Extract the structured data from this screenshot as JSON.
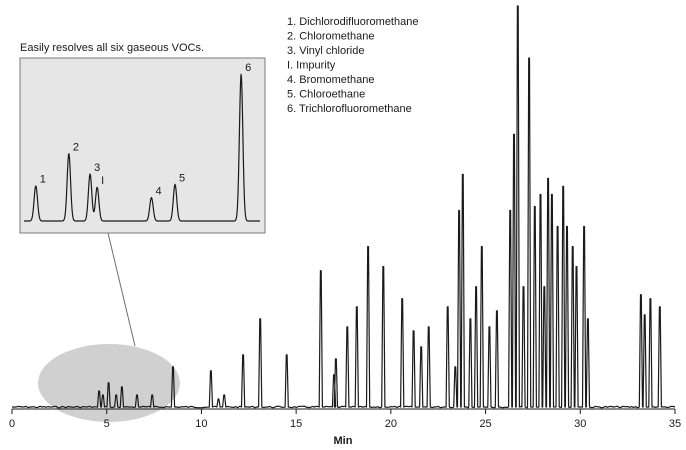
{
  "chart_data": {
    "type": "line",
    "title": "",
    "xlabel": "Min",
    "ylabel": "",
    "xlim": [
      0,
      35
    ],
    "xticks": [
      0,
      5,
      10,
      15,
      20,
      25,
      30,
      35
    ],
    "grid": false,
    "legend": {
      "placement": "top-center",
      "entries": [
        "1. Dichlorodifluoromethane",
        "2. Chloromethane",
        "3. Vinyl chloride",
        "I. Impurity",
        "4. Bromomethane",
        "5. Chloroethane",
        "6. Trichlorofluoromethane"
      ]
    },
    "peaks": [
      {
        "x": 4.6,
        "h": 0.04
      },
      {
        "x": 4.8,
        "h": 0.03
      },
      {
        "x": 5.1,
        "h": 0.06
      },
      {
        "x": 5.5,
        "h": 0.03
      },
      {
        "x": 5.8,
        "h": 0.05
      },
      {
        "x": 6.6,
        "h": 0.03
      },
      {
        "x": 7.4,
        "h": 0.03
      },
      {
        "x": 8.5,
        "h": 0.1
      },
      {
        "x": 10.5,
        "h": 0.09
      },
      {
        "x": 10.9,
        "h": 0.02
      },
      {
        "x": 11.2,
        "h": 0.03
      },
      {
        "x": 12.2,
        "h": 0.13
      },
      {
        "x": 13.1,
        "h": 0.22
      },
      {
        "x": 14.5,
        "h": 0.13
      },
      {
        "x": 16.3,
        "h": 0.34
      },
      {
        "x": 17.0,
        "h": 0.08
      },
      {
        "x": 17.1,
        "h": 0.12
      },
      {
        "x": 17.7,
        "h": 0.2
      },
      {
        "x": 18.2,
        "h": 0.25
      },
      {
        "x": 18.8,
        "h": 0.4
      },
      {
        "x": 19.6,
        "h": 0.35
      },
      {
        "x": 20.6,
        "h": 0.27
      },
      {
        "x": 21.2,
        "h": 0.19
      },
      {
        "x": 21.6,
        "h": 0.15
      },
      {
        "x": 22.0,
        "h": 0.2
      },
      {
        "x": 23.0,
        "h": 0.25
      },
      {
        "x": 23.4,
        "h": 0.1
      },
      {
        "x": 23.6,
        "h": 0.49
      },
      {
        "x": 23.8,
        "h": 0.58
      },
      {
        "x": 24.2,
        "h": 0.22
      },
      {
        "x": 24.5,
        "h": 0.3
      },
      {
        "x": 24.8,
        "h": 0.4
      },
      {
        "x": 25.2,
        "h": 0.2
      },
      {
        "x": 25.6,
        "h": 0.24
      },
      {
        "x": 26.3,
        "h": 0.49
      },
      {
        "x": 26.5,
        "h": 0.68
      },
      {
        "x": 26.7,
        "h": 1.0
      },
      {
        "x": 27.0,
        "h": 0.3
      },
      {
        "x": 27.3,
        "h": 0.87
      },
      {
        "x": 27.6,
        "h": 0.5
      },
      {
        "x": 27.9,
        "h": 0.53
      },
      {
        "x": 28.1,
        "h": 0.3
      },
      {
        "x": 28.3,
        "h": 0.57
      },
      {
        "x": 28.5,
        "h": 0.53
      },
      {
        "x": 28.8,
        "h": 0.45
      },
      {
        "x": 29.1,
        "h": 0.55
      },
      {
        "x": 29.3,
        "h": 0.45
      },
      {
        "x": 29.6,
        "h": 0.4
      },
      {
        "x": 29.8,
        "h": 0.35
      },
      {
        "x": 30.2,
        "h": 0.45
      },
      {
        "x": 30.4,
        "h": 0.22
      },
      {
        "x": 33.2,
        "h": 0.28
      },
      {
        "x": 33.4,
        "h": 0.23
      },
      {
        "x": 33.7,
        "h": 0.27
      },
      {
        "x": 34.2,
        "h": 0.25
      }
    ],
    "inset": {
      "title": "Easily resolves all six gaseous VOCs.",
      "peaks": [
        {
          "label": "1",
          "x": 0.05,
          "h": 0.24
        },
        {
          "label": "2",
          "x": 0.19,
          "h": 0.46
        },
        {
          "label": "3",
          "x": 0.28,
          "h": 0.32
        },
        {
          "label": "I",
          "x": 0.31,
          "h": 0.23
        },
        {
          "label": "4",
          "x": 0.54,
          "h": 0.16
        },
        {
          "label": "5",
          "x": 0.64,
          "h": 0.25
        },
        {
          "label": "6",
          "x": 0.92,
          "h": 1.0
        }
      ]
    }
  }
}
